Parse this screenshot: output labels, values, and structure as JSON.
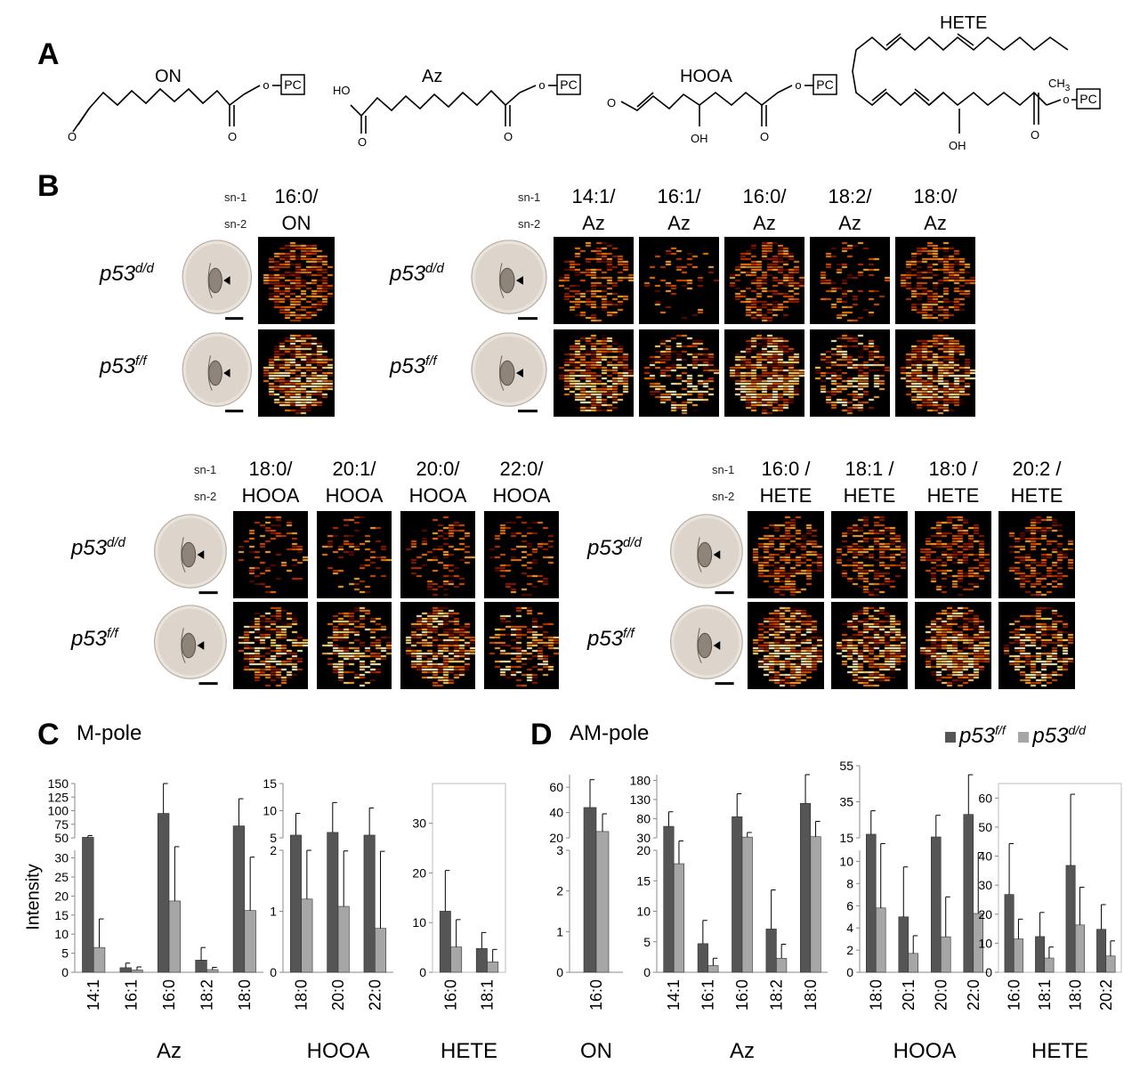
{
  "panels": {
    "A": "A",
    "B": "B",
    "C": "C",
    "D": "D"
  },
  "structures": [
    {
      "name": "ON",
      "terminal_left": "O",
      "terminal_bottom": "O",
      "pc": "PC"
    },
    {
      "name": "Az",
      "terminal_left": "HO",
      "terminal_bottom": "O",
      "terminal_bottom2": "O",
      "pc": "PC"
    },
    {
      "name": "HOOA",
      "terminal_left": "O",
      "oh": "OH",
      "terminal_bottom": "O",
      "pc": "PC"
    },
    {
      "name": "HETE",
      "ch3": "CH",
      "ch3_sub": "3",
      "oh": "OH",
      "terminal_bottom": "O",
      "pc": "PC"
    }
  ],
  "b_labels": {
    "sn1": "sn-1",
    "sn2": "sn-2"
  },
  "genotypes": {
    "base": "p53",
    "dd": "d/d",
    "ff": "f/f"
  },
  "groups": [
    {
      "id": "on",
      "columns": [
        {
          "sn1": "16:0/",
          "sn2": "ON"
        }
      ]
    },
    {
      "id": "az",
      "columns": [
        {
          "sn1": "14:1/",
          "sn2": "Az"
        },
        {
          "sn1": "16:1/",
          "sn2": "Az"
        },
        {
          "sn1": "16:0/",
          "sn2": "Az"
        },
        {
          "sn1": "18:2/",
          "sn2": "Az"
        },
        {
          "sn1": "18:0/",
          "sn2": "Az"
        }
      ]
    },
    {
      "id": "hooa",
      "columns": [
        {
          "sn1": "18:0/",
          "sn2": "HOOA"
        },
        {
          "sn1": "20:1/",
          "sn2": "HOOA"
        },
        {
          "sn1": "20:0/",
          "sn2": "HOOA"
        },
        {
          "sn1": "22:0/",
          "sn2": "HOOA"
        }
      ]
    },
    {
      "id": "hete",
      "columns": [
        {
          "sn1": "16:0 /",
          "sn2": "HETE"
        },
        {
          "sn1": "18:1 /",
          "sn2": "HETE"
        },
        {
          "sn1": "18:0 /",
          "sn2": "HETE"
        },
        {
          "sn1": "20:2 /",
          "sn2": "HETE"
        }
      ]
    }
  ],
  "section_c": "M-pole",
  "section_d": "AM-pole",
  "y_axis_label": "Intensity",
  "legend": {
    "ff_color": "#555555",
    "dd_color": "#a6a6a6"
  },
  "chart_data": [
    {
      "type": "bar",
      "panel": "C",
      "group": "Az",
      "categories": [
        "14:1",
        "16:1",
        "16:0",
        "18:2",
        "18:0"
      ],
      "series": [
        {
          "values": [
            51,
            1.2,
            95,
            3.2,
            72
          ]
        },
        {
          "values": [
            6.5,
            0.6,
            18.7,
            0.7,
            16.2
          ]
        }
      ],
      "errors": [
        [
          3,
          1.2,
          65,
          3.3,
          50
        ],
        [
          7.5,
          0.8,
          15,
          0.6,
          14
        ]
      ],
      "broken_axis": {
        "lower_max": 32,
        "upper_min": 50,
        "upper_max": 150
      },
      "yticks_lower": [
        0,
        5,
        10,
        15,
        20,
        25,
        30
      ],
      "yticks_upper": [
        50,
        75,
        100,
        125,
        150
      ],
      "ytick_labels_lower": [
        "0",
        "5",
        "10",
        "15",
        "20",
        "25",
        "30"
      ],
      "ytick_labels_upper": [
        "50",
        "75",
        "100",
        "125",
        "150"
      ],
      "xlabel": "Az"
    },
    {
      "type": "bar",
      "panel": "C",
      "group": "HOOA",
      "categories": [
        "18:0",
        "20:0",
        "22:0"
      ],
      "series": [
        {
          "values": [
            5.5,
            6,
            5.5
          ]
        },
        {
          "values": [
            1.2,
            1.08,
            0.72
          ]
        }
      ],
      "errors": [
        [
          4,
          5.5,
          5
        ],
        [
          1.5,
          1.5,
          1.8
        ]
      ],
      "broken_axis": {
        "lower_max": 2,
        "upper_min": 5,
        "upper_max": 15
      },
      "yticks_lower": [
        0,
        1,
        2
      ],
      "yticks_upper": [
        5,
        10,
        15
      ],
      "ytick_labels_lower": [
        "0",
        "1",
        "2"
      ],
      "ytick_labels_upper": [
        "5",
        "10",
        "15"
      ],
      "xlabel": "HOOA"
    },
    {
      "type": "bar",
      "panel": "C",
      "group": "HETE",
      "categories": [
        "16:0",
        "18:1"
      ],
      "series": [
        {
          "values": [
            12.3,
            4.8
          ]
        },
        {
          "values": [
            5.1,
            2.1
          ]
        }
      ],
      "errors": [
        [
          8.2,
          3.2
        ],
        [
          5.5,
          2.5
        ]
      ],
      "ylim": [
        0,
        38
      ],
      "yticks": [
        0,
        10,
        20,
        30
      ],
      "ytick_labels": [
        "0",
        "10",
        "20",
        "30"
      ],
      "xlabel": "HETE"
    },
    {
      "type": "bar",
      "panel": "D",
      "group": "ON",
      "categories": [
        "16:0"
      ],
      "series": [
        {
          "values": [
            44
          ]
        },
        {
          "values": [
            25
          ]
        }
      ],
      "errors": [
        [
          22
        ],
        [
          14
        ]
      ],
      "broken_axis": {
        "lower_max": 3,
        "upper_min": 20,
        "upper_max": 70
      },
      "yticks_lower": [
        0,
        1,
        2,
        3
      ],
      "yticks_upper": [
        20,
        40,
        60
      ],
      "ytick_labels_lower": [
        "0",
        "1",
        "2",
        "3"
      ],
      "ytick_labels_upper": [
        "20",
        "40",
        "60"
      ],
      "xlabel": "ON"
    },
    {
      "type": "bar",
      "panel": "D",
      "group": "Az",
      "categories": [
        "14:1",
        "16:1",
        "16:0",
        "18:2",
        "18:0"
      ],
      "series": [
        {
          "values": [
            60,
            4.7,
            85,
            7.1,
            120
          ]
        },
        {
          "values": [
            17.8,
            1.1,
            32,
            2.3,
            33
          ]
        }
      ],
      "errors": [
        [
          38,
          3.8,
          60,
          6.4,
          80
        ],
        [
          4,
          1.2,
          12,
          2.3,
          40
        ]
      ],
      "broken_axis": {
        "lower_max": 20,
        "upper_min": 30,
        "upper_max": 195
      },
      "yticks_lower": [
        0,
        5,
        10,
        15,
        20
      ],
      "yticks_upper": [
        30,
        80,
        130,
        180
      ],
      "ytick_labels_lower": [
        "0",
        "5",
        "10",
        "15",
        "20"
      ],
      "ytick_labels_upper": [
        "30",
        "80",
        "130",
        "180"
      ],
      "xlabel": "Az"
    },
    {
      "type": "bar",
      "panel": "D",
      "group": "HOOA",
      "categories": [
        "18:0",
        "20:1",
        "20:0",
        "22:0"
      ],
      "series": [
        {
          "values": [
            17,
            5,
            15.5,
            28
          ]
        },
        {
          "values": [
            5.8,
            1.7,
            3.2,
            5.3
          ]
        }
      ],
      "errors": [
        [
          13,
          4.5,
          12,
          22
        ],
        [
          6,
          1.6,
          3.6,
          5.5
        ]
      ],
      "broken_axis": {
        "lower_max": 11,
        "upper_min": 15,
        "upper_max": 55
      },
      "yticks_lower": [
        0,
        2,
        4,
        6,
        8,
        10
      ],
      "yticks_upper": [
        15,
        35,
        55
      ],
      "ytick_labels_lower": [
        "0",
        "2",
        "4",
        "6",
        "8",
        "10"
      ],
      "ytick_labels_upper": [
        "15",
        "35",
        "55"
      ],
      "xlabel": "HOOA"
    },
    {
      "type": "bar",
      "panel": "D",
      "group": "HETE",
      "categories": [
        "16:0",
        "18:1",
        "18:0",
        "20:2"
      ],
      "series": [
        {
          "values": [
            26.8,
            12.3,
            36.8,
            14.8
          ]
        },
        {
          "values": [
            11.5,
            4.9,
            16.3,
            5.6
          ]
        }
      ],
      "errors": [
        [
          17.5,
          8.3,
          24.5,
          8.5
        ],
        [
          6.8,
          3.8,
          13,
          5.2
        ]
      ],
      "ylim": [
        0,
        65
      ],
      "yticks": [
        0,
        10,
        20,
        30,
        40,
        50,
        60
      ],
      "ytick_labels": [
        "0",
        "10",
        "20",
        "30",
        "40",
        "50",
        "60"
      ],
      "xlabel": "HETE"
    }
  ]
}
